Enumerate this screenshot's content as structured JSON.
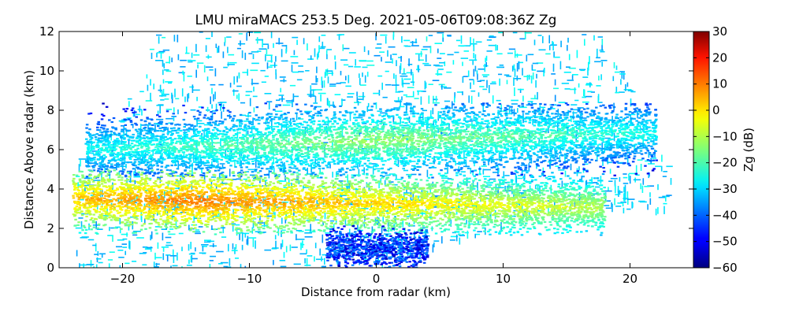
{
  "chart_data": {
    "type": "heatmap",
    "title": "LMU miraMACS 253.5 Deg. 2021-05-06T09:08:36Z  Zg",
    "xlabel": "Distance from radar (km)",
    "ylabel": "Distance Above radar  (km)",
    "xlim": [
      -25,
      25
    ],
    "ylim": [
      0,
      12
    ],
    "xticks": [
      "−20",
      "−10",
      "0",
      "10",
      "20"
    ],
    "xtick_values": [
      -20,
      -10,
      0,
      10,
      20
    ],
    "yticks": [
      "0",
      "2",
      "4",
      "6",
      "8",
      "10",
      "12"
    ],
    "ytick_values": [
      0,
      2,
      4,
      6,
      8,
      10,
      12
    ],
    "colorbar": {
      "label": "Zg (dB)",
      "range": [
        -60,
        30
      ],
      "ticks": [
        "−60",
        "−50",
        "−40",
        "−30",
        "−20",
        "−10",
        "0",
        "10",
        "20",
        "30"
      ],
      "tick_values": [
        -60,
        -50,
        -40,
        -30,
        -20,
        -10,
        0,
        10,
        20,
        30
      ],
      "colormap": "jet"
    },
    "layers": [
      {
        "x_start": -23,
        "x_end": 22,
        "y_start": 4.8,
        "y_end": 8.2,
        "y_center": 6.5,
        "slope": 0.02,
        "zg_peak": -12
      },
      {
        "x_start": -24,
        "x_end": 18,
        "y_start": 1.9,
        "y_end": 4.8,
        "y_center": 3.3,
        "slope": -0.01,
        "zg_peak": 8
      },
      {
        "x_start": -4,
        "x_end": 4,
        "y_start": 0,
        "y_end": 2,
        "y_center": 1.0,
        "slope": 0,
        "zg_peak": -45
      }
    ],
    "grid": false
  }
}
